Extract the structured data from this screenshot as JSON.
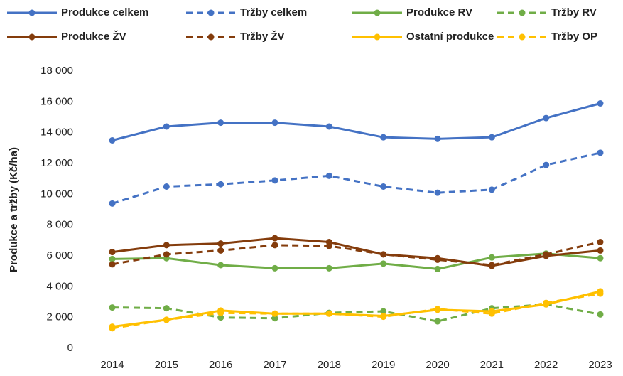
{
  "chart_data": {
    "type": "line",
    "y_label": "Produkce a tržby (Kč/ha)",
    "categories": [
      "2014",
      "2015",
      "2016",
      "2017",
      "2018",
      "2019",
      "2020",
      "2021",
      "2022",
      "2023"
    ],
    "ylim": [
      0,
      18000
    ],
    "yticks": [
      0,
      {
        "value": 2000,
        "label": "2 000"
      },
      {
        "value": 4000,
        "label": "4 000"
      },
      {
        "value": 6000,
        "label": "6 000"
      },
      {
        "value": 8000,
        "label": "8 000"
      },
      {
        "value": 10000,
        "label": "10 000"
      },
      {
        "value": 12000,
        "label": "12 000"
      },
      {
        "value": 14000,
        "label": "14 000"
      },
      {
        "value": 16000,
        "label": "16 000"
      },
      {
        "value": 18000,
        "label": "18 000"
      }
    ],
    "grid": false,
    "series": [
      {
        "name": "Produkce celkem",
        "color": "#4472c4",
        "dashed": false,
        "values": [
          13500,
          14400,
          14650,
          14650,
          14400,
          13700,
          13600,
          13700,
          14950,
          15900
        ]
      },
      {
        "name": "Tržby celkem",
        "color": "#4472c4",
        "dashed": true,
        "values": [
          9400,
          10500,
          10650,
          10900,
          11200,
          10500,
          10100,
          10300,
          11900,
          12700
        ]
      },
      {
        "name": "Produkce RV",
        "color": "#70ad47",
        "dashed": false,
        "values": [
          5800,
          5850,
          5400,
          5200,
          5200,
          5500,
          5150,
          5900,
          6150,
          5850
        ]
      },
      {
        "name": "Tržby RV",
        "color": "#70ad47",
        "dashed": true,
        "values": [
          2650,
          2600,
          2000,
          1950,
          2300,
          2400,
          1750,
          2600,
          2850,
          2200
        ]
      },
      {
        "name": "Produkce ŽV",
        "color": "#843c0c",
        "dashed": false,
        "values": [
          6250,
          6700,
          6800,
          7150,
          6900,
          6100,
          5850,
          5350,
          6000,
          6350
        ]
      },
      {
        "name": "Tržby ŽV",
        "color": "#843c0c",
        "dashed": true,
        "values": [
          5450,
          6100,
          6350,
          6700,
          6650,
          6100,
          5750,
          5400,
          6100,
          6900
        ]
      },
      {
        "name": "Ostatní produkce",
        "color": "#ffc000",
        "dashed": false,
        "values": [
          1400,
          1850,
          2450,
          2250,
          2250,
          2100,
          2500,
          2400,
          2850,
          3700
        ]
      },
      {
        "name": "Tržby OP",
        "color": "#ffc000",
        "dashed": true,
        "values": [
          1300,
          1850,
          2300,
          2250,
          2250,
          2050,
          2550,
          2250,
          2950,
          3550
        ]
      }
    ]
  }
}
